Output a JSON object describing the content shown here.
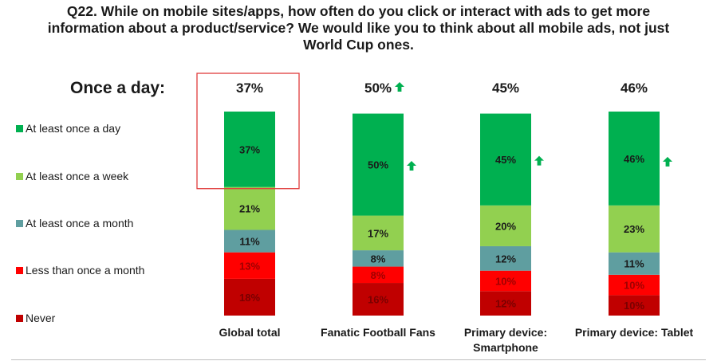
{
  "title_lines": [
    "Q22. While on mobile sites/apps, how often do you click or interact with ads to get more",
    "information about a product/service? We would like you to think about all mobile ads, not just",
    "World Cup ones."
  ],
  "once_a_day_label": "Once a day:",
  "colors": {
    "at_least_once_a_day": "#00b050",
    "at_least_once_a_week": "#92d050",
    "at_least_once_a_month": "#5f9ea0",
    "less_than_once_a_month": "#ff0000",
    "never": "#c00000",
    "highlight_box": "#e03c3c",
    "arrow": "#00b050"
  },
  "chart_data": {
    "type": "bar",
    "stacked": true,
    "orientation": "vertical",
    "percent_stacked": true,
    "categories": [
      "Global total",
      "Fanatic Football Fans",
      "Primary device: Smartphone",
      "Primary device: Tablet"
    ],
    "category_label_lines": [
      [
        "Global total"
      ],
      [
        "Fanatic Football Fans"
      ],
      [
        "Primary device:",
        "Smartphone"
      ],
      [
        "Primary device: Tablet"
      ]
    ],
    "series": [
      {
        "name": "Never",
        "values": [
          18,
          16,
          12,
          10
        ],
        "labels": [
          "18%",
          "16%",
          "12%",
          "10%"
        ]
      },
      {
        "name": "Less than once a month",
        "values": [
          13,
          8,
          10,
          10
        ],
        "labels": [
          "13%",
          "8%",
          "10%",
          "10%"
        ]
      },
      {
        "name": "At least once a month",
        "values": [
          11,
          8,
          12,
          11
        ],
        "labels": [
          "11%",
          "8%",
          "12%",
          "11%"
        ]
      },
      {
        "name": "At least once a week",
        "values": [
          21,
          17,
          20,
          23
        ],
        "labels": [
          "21%",
          "17%",
          "20%",
          "23%"
        ]
      },
      {
        "name": "At least once a day",
        "values": [
          37,
          50,
          45,
          46
        ],
        "labels": [
          "37%",
          "50%",
          "45%",
          "46%"
        ]
      }
    ],
    "legend": {
      "placement": "left",
      "entries": [
        "At least once a day",
        "At least once a week",
        "At least once a month",
        "Less than once a month",
        "Never"
      ]
    },
    "once_a_day_headers": [
      "37%",
      "50%",
      "45%",
      "46%"
    ],
    "header_up_arrow": [
      false,
      true,
      false,
      false
    ],
    "bar_up_arrow": [
      false,
      true,
      true,
      true
    ],
    "highlighted_category": "Global total",
    "ylim": [
      0,
      100
    ],
    "grid": false
  }
}
